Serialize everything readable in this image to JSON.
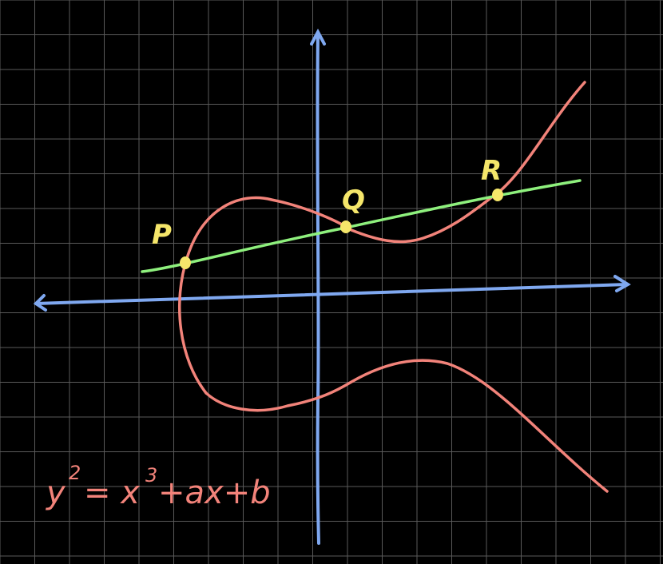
{
  "colors": {
    "background": "#000000",
    "grid": "#5a5a5a",
    "axes": "#7fa8f0",
    "curve": "#f2837a",
    "line": "#8ef07d",
    "points": "#f5e66a"
  },
  "points": [
    {
      "label": "P"
    },
    {
      "label": "Q"
    },
    {
      "label": "R"
    }
  ],
  "equation": {
    "base": "y",
    "exp": "2",
    "rest": "= x",
    "exp2": "3",
    "tail": "+ax+b"
  }
}
